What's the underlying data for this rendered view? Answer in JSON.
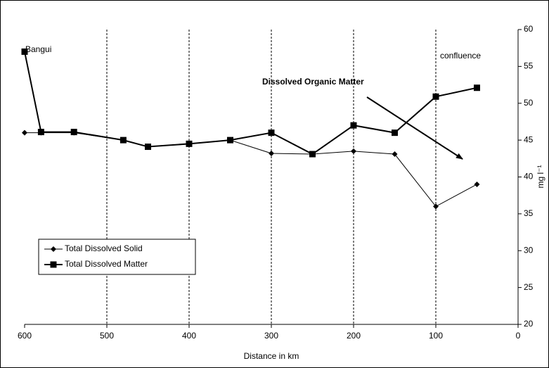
{
  "chart_data": {
    "type": "line",
    "x_label": "Distance in km",
    "y_label": "mg l⁻¹",
    "y_axis_side": "right",
    "xlim": [
      600,
      0
    ],
    "xticks": [
      600,
      500,
      400,
      300,
      200,
      100,
      0
    ],
    "ylim": [
      20,
      60
    ],
    "yticks": [
      20,
      25,
      30,
      35,
      40,
      45,
      50,
      55,
      60
    ],
    "x_grid": true,
    "legend_position": "lower left",
    "annotations": [
      "Bangui",
      "confluence",
      "Dissolved Organic Matter"
    ],
    "series": [
      {
        "name": "Total Dissolved Solid",
        "color": "#000000",
        "marker": "diamond",
        "x": [
          600,
          580,
          540,
          480,
          450,
          400,
          350,
          300,
          250,
          200,
          150,
          100,
          50
        ],
        "values": [
          46,
          46,
          46,
          45,
          44.1,
          44.5,
          45,
          43.2,
          43.1,
          43.5,
          43.1,
          36,
          39
        ]
      },
      {
        "name": "Total Dissolved Matter",
        "color": "#000000",
        "marker": "square",
        "x": [
          600,
          580,
          540,
          480,
          450,
          400,
          350,
          300,
          250,
          200,
          150,
          100,
          50
        ],
        "values": [
          57,
          46.1,
          46.1,
          45,
          44.1,
          44.5,
          45,
          46,
          43.1,
          47,
          46,
          50.9,
          52.1
        ]
      }
    ]
  }
}
